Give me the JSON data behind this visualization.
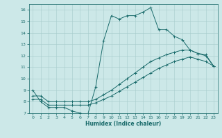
{
  "title": "",
  "xlabel": "Humidex (Indice chaleur)",
  "ylabel": "",
  "bg_color": "#cce8e8",
  "line_color": "#1a6b6b",
  "xlim": [
    -0.5,
    23.5
  ],
  "ylim": [
    7,
    16.5
  ],
  "xticks": [
    0,
    1,
    2,
    3,
    4,
    5,
    6,
    7,
    8,
    9,
    10,
    11,
    12,
    13,
    14,
    15,
    16,
    17,
    18,
    19,
    20,
    21,
    22,
    23
  ],
  "yticks": [
    7,
    8,
    9,
    10,
    11,
    12,
    13,
    14,
    15,
    16
  ],
  "lines": [
    {
      "x": [
        0,
        1,
        2,
        3,
        4,
        5,
        6,
        7,
        8,
        9,
        10,
        11,
        12,
        13,
        14,
        15,
        16,
        17,
        18,
        19,
        20,
        21,
        22,
        23
      ],
      "y": [
        9,
        8,
        7.5,
        7.5,
        7.5,
        7.2,
        7.0,
        6.9,
        9.3,
        13.3,
        15.5,
        15.2,
        15.5,
        15.5,
        15.8,
        16.2,
        14.3,
        14.3,
        13.7,
        13.4,
        12.5,
        12.2,
        12.1,
        11.1
      ]
    },
    {
      "x": [
        0,
        1,
        2,
        3,
        4,
        5,
        6,
        7,
        8,
        9,
        10,
        11,
        12,
        13,
        14,
        15,
        16,
        17,
        18,
        19,
        20,
        21,
        22,
        23
      ],
      "y": [
        8.5,
        8.5,
        8.0,
        8.0,
        8.0,
        8.0,
        8.0,
        8.0,
        8.2,
        8.6,
        9.0,
        9.5,
        10.0,
        10.5,
        11.0,
        11.5,
        11.8,
        12.1,
        12.3,
        12.5,
        12.5,
        12.2,
        12.0,
        11.1
      ]
    },
    {
      "x": [
        0,
        1,
        2,
        3,
        4,
        5,
        6,
        7,
        8,
        9,
        10,
        11,
        12,
        13,
        14,
        15,
        16,
        17,
        18,
        19,
        20,
        21,
        22,
        23
      ],
      "y": [
        8.2,
        8.2,
        7.7,
        7.7,
        7.7,
        7.7,
        7.7,
        7.7,
        7.9,
        8.2,
        8.5,
        8.9,
        9.3,
        9.7,
        10.1,
        10.5,
        10.9,
        11.2,
        11.5,
        11.7,
        11.9,
        11.7,
        11.5,
        11.1
      ]
    }
  ]
}
